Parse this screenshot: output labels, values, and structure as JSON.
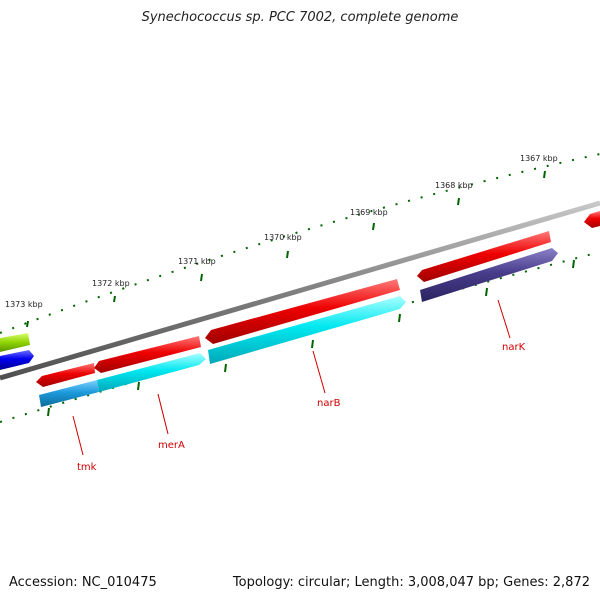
{
  "title": "Synechococcus sp. PCC 7002, complete genome",
  "footer": {
    "accession": "Accession: NC_010475",
    "stats": "Topology: circular; Length: 3,008,047 bp; Genes: 2,872"
  },
  "scale_labels": [
    "1367 kbp",
    "1368 kbp",
    "1369 kbp",
    "1370 kbp",
    "1371 kbp",
    "1372 kbp",
    "1373 kbp"
  ],
  "gene_labels": [
    "narK",
    "narB",
    "merA",
    "tmk"
  ],
  "colors": {
    "backbone": "#808080",
    "forward_gene": "#ee0000",
    "reverse_gene": "#00e5ee",
    "narK_reverse": "#483d8b",
    "tmk_reverse": "#1e9bdc",
    "partial_green": "#8fd400",
    "partial_blue": "#0000ee",
    "tick": "#006400",
    "label_line": "#d00000"
  }
}
